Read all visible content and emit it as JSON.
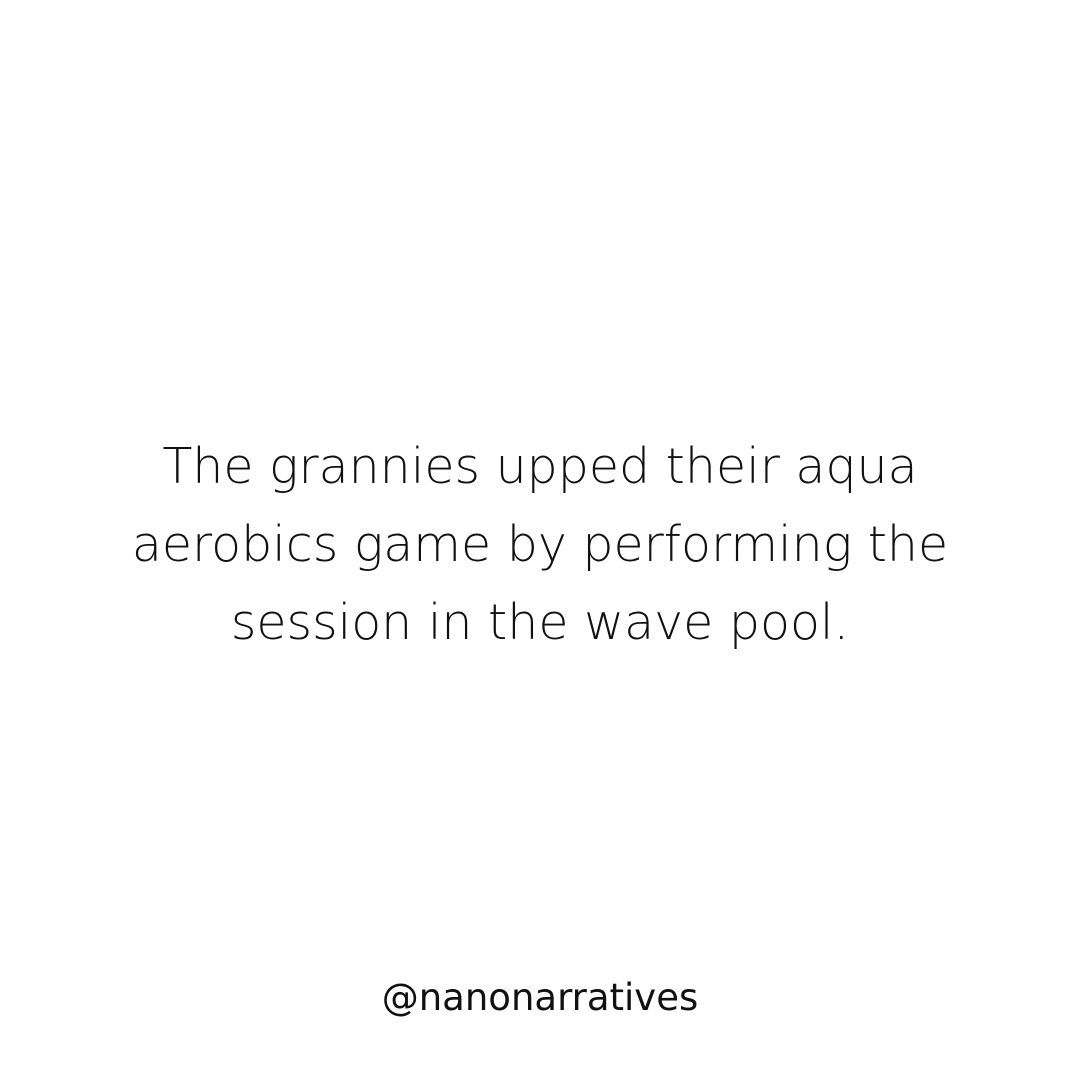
{
  "post": {
    "background_color": "#ffffff",
    "text_color": "#111111",
    "story_lines": [
      "The grannies upped their aqua",
      "aerobics game by performing the",
      "session in the wave pool."
    ],
    "handle": "@nanonarratives"
  }
}
